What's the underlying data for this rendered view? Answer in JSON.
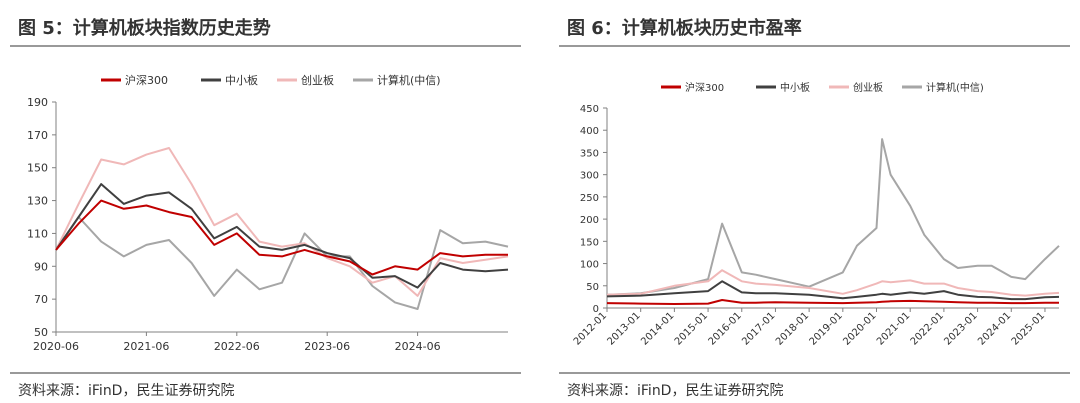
{
  "figures": [
    {
      "title": "图 5：计算机板块指数历史走势",
      "source": "资料来源：iFinD，民生证券研究院"
    },
    {
      "title": "图 6：计算机板块历史市盈率",
      "source": "资料来源：iFinD，民生证券研究院"
    }
  ],
  "chart_data": [
    {
      "type": "line",
      "title": "",
      "xlabel": "",
      "ylabel": "",
      "x_ticks": [
        "2020-06",
        "2021-06",
        "2022-06",
        "2023-06",
        "2024-06"
      ],
      "x_range": [
        "2020-06",
        "2025-06"
      ],
      "ylim": [
        50,
        190
      ],
      "y_ticks": [
        50,
        70,
        90,
        110,
        130,
        150,
        170,
        190
      ],
      "grid": false,
      "legend": "top",
      "x": [
        "2020-06",
        "2020-09",
        "2020-12",
        "2021-03",
        "2021-06",
        "2021-09",
        "2021-12",
        "2022-03",
        "2022-06",
        "2022-09",
        "2022-12",
        "2023-03",
        "2023-06",
        "2023-09",
        "2023-12",
        "2024-03",
        "2024-06",
        "2024-09",
        "2024-12",
        "2025-03",
        "2025-06"
      ],
      "series": [
        {
          "name": "沪深300",
          "color": "#c00000",
          "values": [
            100,
            116,
            130,
            125,
            127,
            123,
            120,
            103,
            110,
            97,
            96,
            100,
            96,
            93,
            85,
            90,
            88,
            98,
            96,
            97,
            97
          ]
        },
        {
          "name": "中小板",
          "color": "#404040",
          "values": [
            100,
            120,
            140,
            128,
            133,
            135,
            125,
            107,
            114,
            102,
            100,
            103,
            98,
            95,
            83,
            84,
            77,
            92,
            88,
            87,
            88
          ]
        },
        {
          "name": "创业板",
          "color": "#f0b8b8",
          "values": [
            100,
            128,
            155,
            152,
            158,
            162,
            140,
            115,
            122,
            105,
            102,
            104,
            95,
            90,
            80,
            84,
            72,
            95,
            92,
            94,
            96
          ]
        },
        {
          "name": "计算机(中信)",
          "color": "#a6a6a6",
          "values": [
            100,
            120,
            105,
            96,
            103,
            106,
            92,
            72,
            88,
            76,
            80,
            110,
            96,
            96,
            78,
            68,
            64,
            112,
            104,
            105,
            102
          ]
        }
      ]
    },
    {
      "type": "line",
      "title": "",
      "xlabel": "",
      "ylabel": "",
      "x_ticks": [
        "2012-01",
        "2013-01",
        "2014-01",
        "2015-01",
        "2016-01",
        "2017-01",
        "2018-01",
        "2019-01",
        "2020-01",
        "2021-01",
        "2022-01",
        "2023-01",
        "2024-01",
        "2025-01"
      ],
      "x_range": [
        "2012-01",
        "2025-06"
      ],
      "ylim": [
        0,
        450
      ],
      "y_ticks": [
        0,
        50,
        100,
        150,
        200,
        250,
        300,
        350,
        400,
        450
      ],
      "grid": false,
      "legend": "top",
      "x": [
        "2012-01",
        "2013-01",
        "2014-01",
        "2015-01",
        "2015-06",
        "2016-01",
        "2016-06",
        "2017-01",
        "2018-01",
        "2019-01",
        "2019-06",
        "2020-01",
        "2020-03",
        "2020-06",
        "2021-01",
        "2021-06",
        "2022-01",
        "2022-06",
        "2023-01",
        "2023-06",
        "2024-01",
        "2024-06",
        "2025-01",
        "2025-06"
      ],
      "series": [
        {
          "name": "沪深300",
          "color": "#c00000",
          "values": [
            11,
            10,
            9,
            10,
            18,
            12,
            12,
            13,
            12,
            11,
            12,
            13,
            14,
            15,
            16,
            15,
            14,
            13,
            12,
            12,
            11,
            11,
            12,
            12
          ]
        },
        {
          "name": "中小板",
          "color": "#404040",
          "values": [
            26,
            28,
            33,
            38,
            60,
            35,
            33,
            33,
            30,
            22,
            25,
            30,
            32,
            30,
            35,
            32,
            38,
            30,
            25,
            24,
            20,
            20,
            24,
            25
          ]
        },
        {
          "name": "创业板",
          "color": "#f0b8b8",
          "values": [
            30,
            32,
            50,
            60,
            85,
            60,
            55,
            52,
            45,
            32,
            40,
            55,
            60,
            58,
            62,
            55,
            55,
            45,
            38,
            36,
            30,
            28,
            32,
            34
          ]
        },
        {
          "name": "计算机(中信)",
          "color": "#a6a6a6",
          "values": [
            30,
            33,
            45,
            65,
            190,
            80,
            75,
            65,
            48,
            80,
            140,
            180,
            380,
            300,
            230,
            165,
            110,
            90,
            95,
            95,
            70,
            65,
            110,
            140
          ]
        }
      ]
    }
  ]
}
